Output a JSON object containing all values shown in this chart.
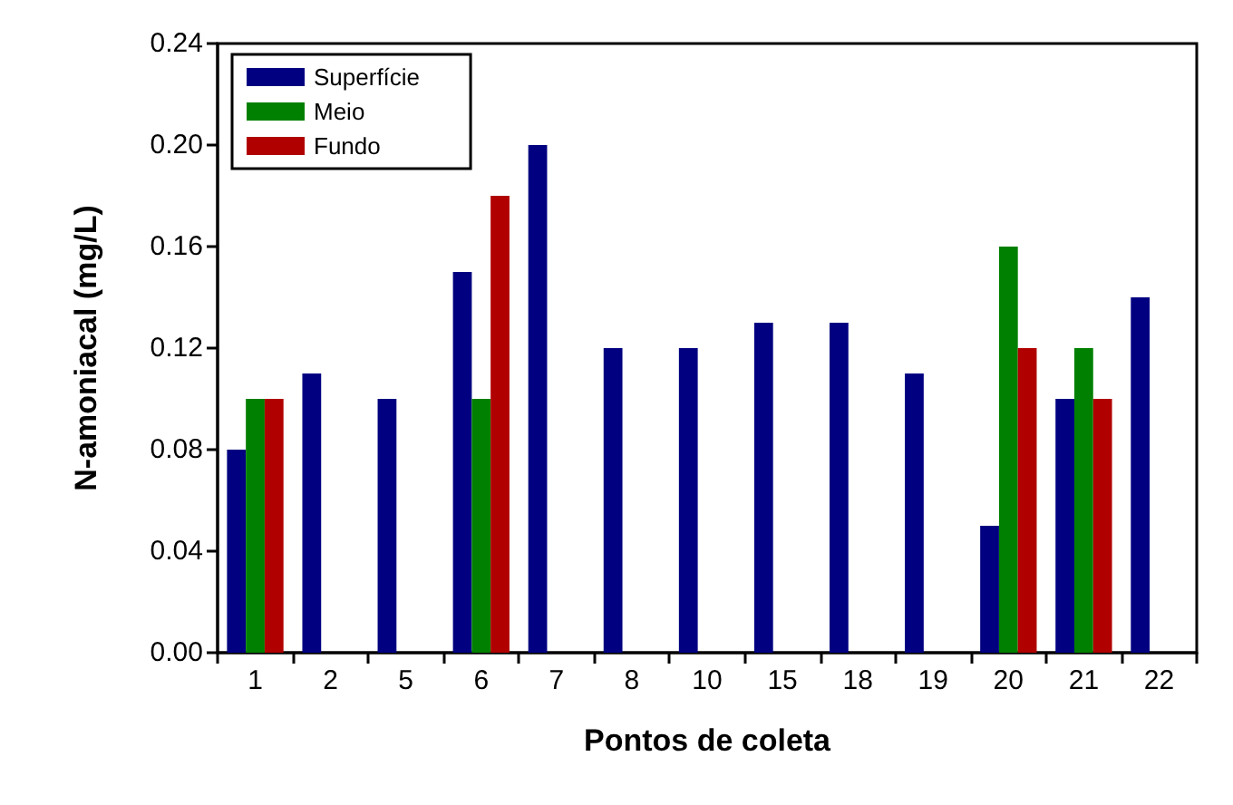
{
  "chart_data": {
    "type": "bar",
    "xlabel": "Pontos de coleta",
    "ylabel": "N-amoniacal (mg/L)",
    "categories": [
      "1",
      "2",
      "5",
      "6",
      "7",
      "8",
      "10",
      "15",
      "18",
      "19",
      "20",
      "21",
      "22"
    ],
    "series": [
      {
        "name": "Superfície",
        "color": "#000080",
        "values": [
          0.08,
          0.11,
          0.1,
          0.15,
          0.2,
          0.12,
          0.12,
          0.13,
          0.13,
          0.11,
          0.05,
          0.1,
          0.14
        ]
      },
      {
        "name": "Meio",
        "color": "#008000",
        "values": [
          0.1,
          null,
          null,
          0.1,
          null,
          null,
          null,
          null,
          null,
          null,
          0.16,
          0.12,
          null
        ]
      },
      {
        "name": "Fundo",
        "color": "#b00000",
        "values": [
          0.1,
          null,
          null,
          0.18,
          null,
          null,
          null,
          null,
          null,
          null,
          0.12,
          0.1,
          null
        ]
      }
    ],
    "ylim": [
      0,
      0.24
    ],
    "yticks": [
      {
        "value": 0,
        "label": "0.00"
      },
      {
        "value": 0.04,
        "label": "0.04"
      },
      {
        "value": 0.08,
        "label": "0.08"
      },
      {
        "value": 0.12,
        "label": "0.12"
      },
      {
        "value": 0.16,
        "label": "0.16"
      },
      {
        "value": 0.2,
        "label": "0.20"
      },
      {
        "value": 0.24,
        "label": "0.24"
      }
    ],
    "grid": false,
    "legend": "top left"
  }
}
